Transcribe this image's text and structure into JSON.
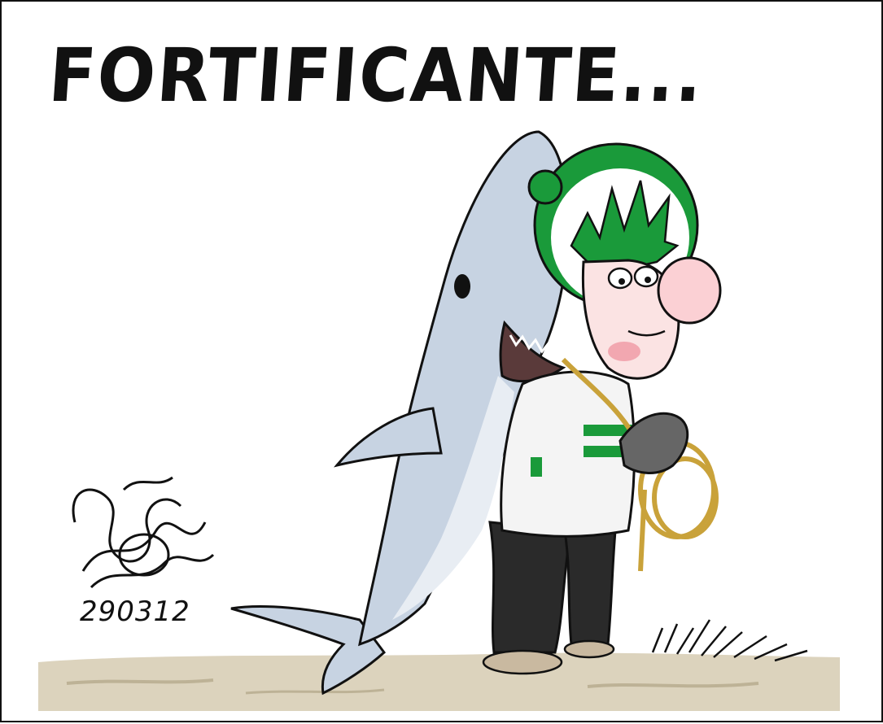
{
  "cartoon": {
    "title": "FORTIFICANTE...",
    "date_stamp": "290312"
  },
  "colors": {
    "club_green": "#1a9a3a",
    "shark_blue": "#c7d3e2",
    "ground_sand": "#dcd3bd",
    "skin": "#fbe3e3",
    "rope": "#c9a23a"
  },
  "icons": [
    "shark-costume",
    "cartoon-character",
    "rope-coil",
    "signature-scribble",
    "grass-tuft"
  ]
}
